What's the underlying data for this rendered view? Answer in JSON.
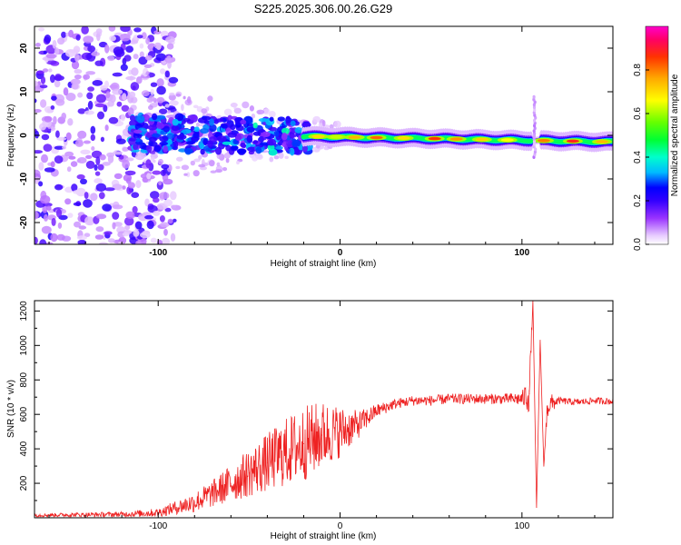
{
  "title": "S225.2025.306.00.26.G29",
  "chart_data": [
    {
      "type": "heatmap",
      "xlabel": "Height of straight line (km)",
      "ylabel": "Frequency (Hz)",
      "xlim": [
        -168,
        150
      ],
      "ylim": [
        -25,
        25
      ],
      "xticks": [
        -100,
        0,
        100
      ],
      "yticks": [
        -20,
        -10,
        0,
        10,
        20
      ],
      "colorbar": {
        "label": "Normalized spectral amplitude",
        "range": [
          0,
          1
        ],
        "ticks": [
          0.0,
          0.2,
          0.4,
          0.6,
          0.8
        ],
        "colors": [
          "#ffffff",
          "#cc99ff",
          "#7700ff",
          "#0000ff",
          "#00ccff",
          "#00ff66",
          "#66ff00",
          "#ffff00",
          "#ff9900",
          "#ff2222",
          "#ff00cc"
        ]
      },
      "features": {
        "noise_x_range": [
          -168,
          -110
        ],
        "noise_amplitude": 0.35,
        "band_x_range": [
          -115,
          150
        ],
        "band_center_start_hz": 0.5,
        "band_center_end_hz": -1.5,
        "band_peak_amplitude": 0.85,
        "spike_x": 107,
        "spike_freq_range": [
          -5,
          9
        ]
      }
    },
    {
      "type": "line",
      "xlabel": "Height of straight line (km)",
      "ylabel": "SNR (10 * v/v)",
      "xlim": [
        -168,
        150
      ],
      "ylim": [
        0,
        1260
      ],
      "xticks": [
        -100,
        0,
        100
      ],
      "yticks": [
        200,
        400,
        600,
        800,
        1000,
        1200
      ],
      "color": "#ee2222",
      "series": [
        {
          "name": "SNR",
          "x": [
            -168,
            -120,
            -100,
            -90,
            -80,
            -70,
            -60,
            -50,
            -40,
            -30,
            -20,
            -10,
            0,
            10,
            20,
            30,
            40,
            50,
            60,
            70,
            80,
            90,
            100,
            104,
            106,
            108,
            110,
            112,
            114,
            120,
            130,
            140,
            150
          ],
          "y": [
            15,
            20,
            30,
            60,
            90,
            140,
            200,
            260,
            320,
            380,
            430,
            480,
            500,
            540,
            620,
            660,
            680,
            680,
            690,
            690,
            690,
            690,
            690,
            720,
            1260,
            60,
            1030,
            300,
            650,
            680,
            670,
            680,
            675
          ],
          "spread": [
            10,
            15,
            25,
            40,
            60,
            80,
            110,
            140,
            170,
            200,
            220,
            200,
            150,
            80,
            40,
            30,
            30,
            30,
            30,
            30,
            30,
            30,
            40,
            120,
            0,
            0,
            0,
            0,
            80,
            20,
            20,
            20,
            20
          ]
        }
      ]
    }
  ]
}
